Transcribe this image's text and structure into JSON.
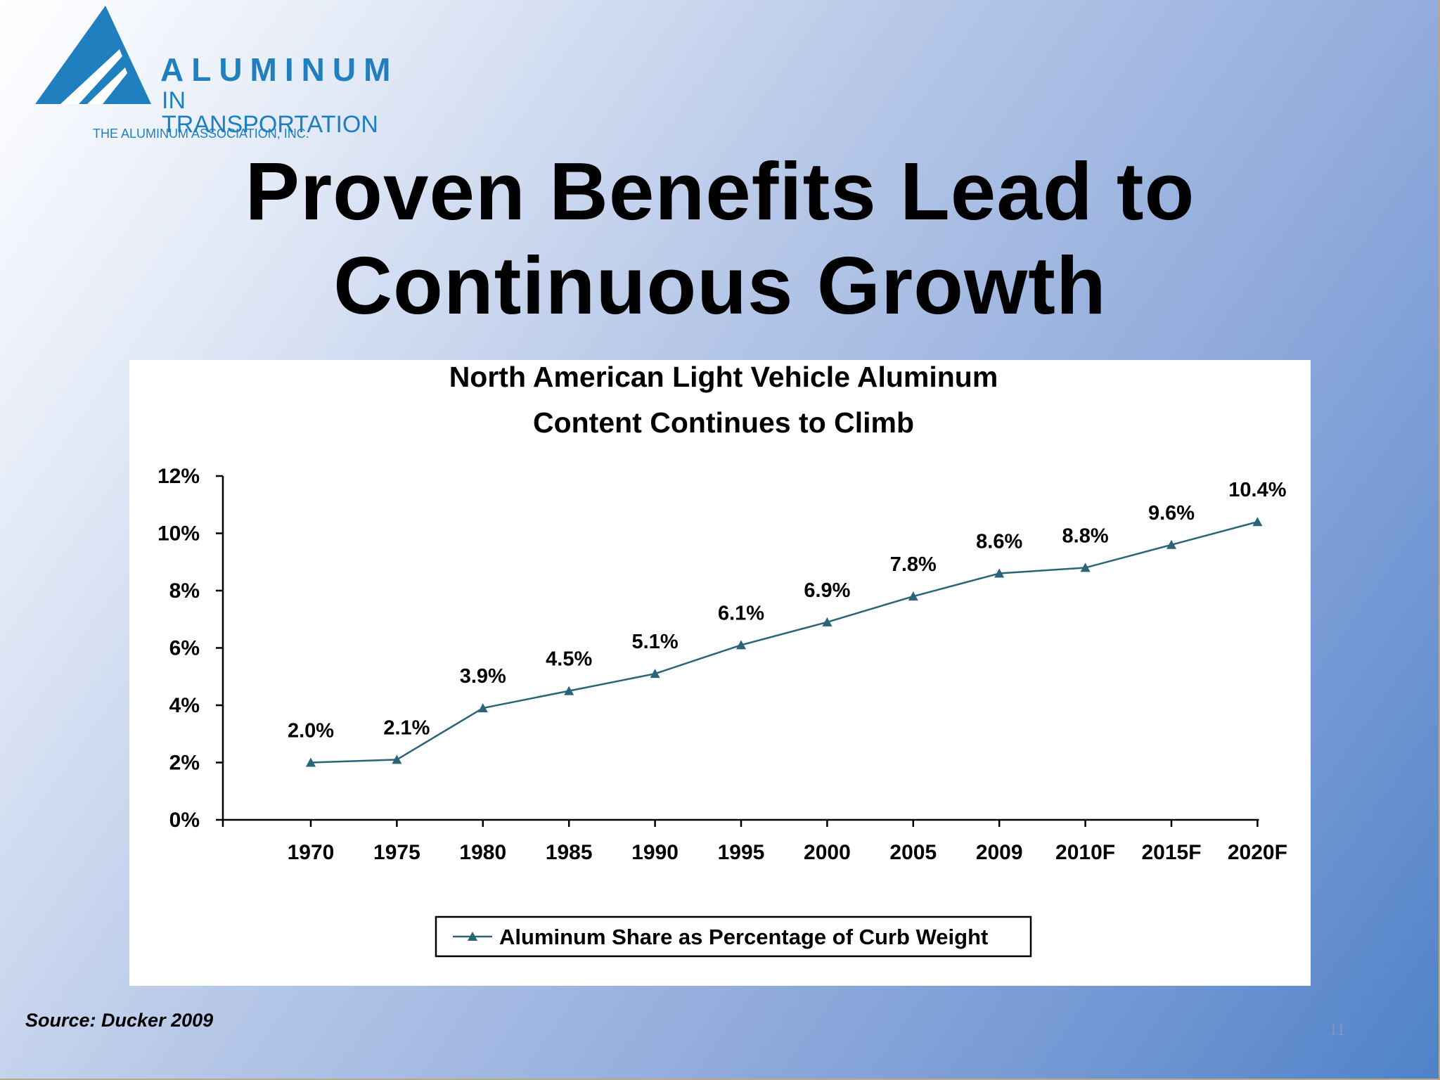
{
  "logo": {
    "word1": "ALUMINUM",
    "word2": "IN TRANSPORTATION",
    "association": "THE ALUMINUM ASSOCIATION, INC.",
    "color": "#1f7fbf"
  },
  "slide": {
    "title_line1": "Proven Benefits Lead to",
    "title_line2": "Continuous Growth",
    "source": "Source: Ducker 2009",
    "page_number": "11"
  },
  "chart_data": {
    "type": "line",
    "title_line1": "North American Light Vehicle Aluminum",
    "title_line2": "Content Continues to Climb",
    "categories": [
      "1970",
      "1975",
      "1980",
      "1985",
      "1990",
      "1995",
      "2000",
      "2005",
      "2009",
      "2010F",
      "2015F",
      "2020F"
    ],
    "series": [
      {
        "name": "Aluminum Share as Percentage of Curb Weight",
        "values": [
          2.0,
          2.1,
          3.9,
          4.5,
          5.1,
          6.1,
          6.9,
          7.8,
          8.6,
          8.8,
          9.6,
          10.4
        ],
        "labels": [
          "2.0%",
          "2.1%",
          "3.9%",
          "4.5%",
          "5.1%",
          "6.1%",
          "6.9%",
          "7.8%",
          "8.6%",
          "8.8%",
          "9.6%",
          "10.4%"
        ],
        "color": "#2a6478",
        "marker": "triangle"
      }
    ],
    "yticks": [
      0,
      2,
      4,
      6,
      8,
      10,
      12
    ],
    "ytick_labels": [
      "0%",
      "2%",
      "4%",
      "6%",
      "8%",
      "10%",
      "12%"
    ],
    "ylim": [
      0,
      12
    ],
    "grid": false,
    "legend": "bottom-center"
  }
}
